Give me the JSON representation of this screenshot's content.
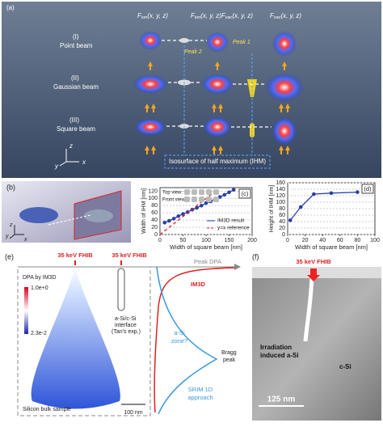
{
  "panel_a": {
    "label": "(a)",
    "headers": [
      {
        "base": "F",
        "sub": "ion",
        "args": "(x, y, z)"
      },
      {
        "base": "F",
        "sub": "ion",
        "args": "(x, y, z)",
        "base2": "F",
        "sub2": "vac",
        "args2": "(x, y, z)"
      },
      {
        "base": "F",
        "sub": "vac",
        "args": "(x, y, z)"
      }
    ],
    "rows": [
      {
        "num": "(I)",
        "name": "Point beam"
      },
      {
        "num": "(II)",
        "name": "Gaussian beam"
      },
      {
        "num": "(III)",
        "name": "Square beam"
      }
    ],
    "peak1": "Peak 1",
    "peak2": "Peak 2",
    "ihm": "Isosurface of half maximum (IHM)",
    "axes": [
      "z",
      "y",
      "x"
    ]
  },
  "panel_b": {
    "label": "(b)",
    "axes": [
      "z",
      "y",
      "x"
    ]
  },
  "chart_data": [
    {
      "type": "line",
      "label": "(c)",
      "xlabel": "Width of square beam [nm]",
      "ylabel": "Width of IHM [nm]",
      "xlim": [
        0,
        200
      ],
      "ylim": [
        0,
        130
      ],
      "xticks": [
        0,
        50,
        100,
        150,
        200
      ],
      "yticks": [
        0,
        20,
        40,
        60,
        80,
        100,
        120
      ],
      "grid": true,
      "inset": [
        "Top view:",
        "Front view:"
      ],
      "legend": "lower right",
      "series": [
        {
          "name": "IM3D result",
          "color": "#2a3fa8",
          "markers": true,
          "x": [
            10,
            20,
            30,
            40,
            50,
            60,
            70,
            80,
            90,
            100,
            110,
            120,
            130,
            140,
            150,
            160
          ],
          "values": [
            33,
            38,
            44,
            51,
            57,
            62,
            69,
            74,
            80,
            87,
            92,
            99,
            104,
            110,
            117,
            124
          ]
        },
        {
          "name": "y=x reference",
          "color": "#d22",
          "dash": true,
          "x": [
            0,
            120
          ],
          "values": [
            0,
            120
          ]
        }
      ]
    },
    {
      "type": "line",
      "label": "(d)",
      "xlabel": "Width of square beam [nm]",
      "ylabel": "Height of IHM [nm]",
      "xlim": [
        0,
        100
      ],
      "ylim": [
        0,
        160
      ],
      "xticks": [
        0,
        20,
        40,
        60,
        80,
        100
      ],
      "yticks": [
        0,
        20,
        40,
        60,
        80,
        100,
        120,
        140,
        160
      ],
      "grid": true,
      "series": [
        {
          "color": "#2a3fa8",
          "markers": true,
          "x": [
            3,
            15,
            30,
            50,
            80
          ],
          "values": [
            44,
            85,
            125,
            128,
            131
          ]
        }
      ]
    }
  ],
  "panel_e": {
    "label": "(e)",
    "beam": "35 keV FHIB",
    "peak": "Peak DPA",
    "dpa": "DPA by IM3D",
    "cmax": "1.0e+0",
    "cmin": "2.3e-2",
    "interface": [
      "a-Si/c-Si",
      "interface",
      "(Tan's exp.)"
    ],
    "im3d": "IM3D",
    "zone": [
      "a-Si",
      "zone?"
    ],
    "bragg": [
      "Bragg",
      "peak"
    ],
    "srim": [
      "SRIM 1D",
      "approach"
    ],
    "bulk": "Silicon bulk sample",
    "scale": "100 nm"
  },
  "panel_f": {
    "label": "(f)",
    "beam": "35 keV FHIB",
    "asi": [
      "Irradiation",
      "induced a-Si"
    ],
    "csi": "c-Si",
    "scale": "125 nm"
  }
}
